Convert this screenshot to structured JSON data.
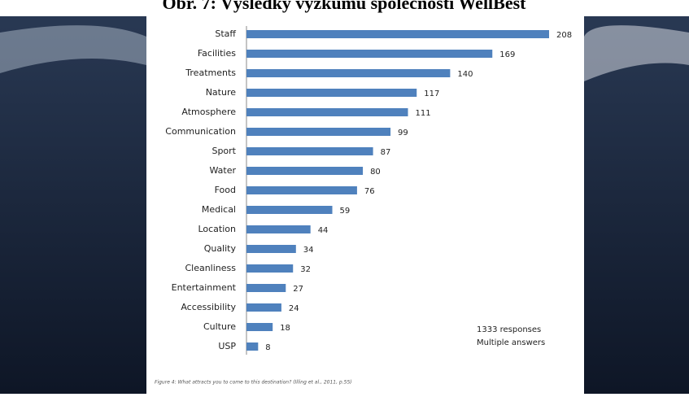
{
  "chart_data": {
    "type": "bar",
    "orientation": "horizontal",
    "title": "Obr. 7: Výsledky výzkumu společnosti WellBest",
    "categories": [
      "Staff",
      "Facilities",
      "Treatments",
      "Nature",
      "Atmosphere",
      "Communication",
      "Sport",
      "Water",
      "Food",
      "Medical",
      "Location",
      "Quality",
      "Cleanliness",
      "Entertainment",
      "Accessibility",
      "Culture",
      "USP"
    ],
    "values": [
      208,
      169,
      140,
      117,
      111,
      99,
      87,
      80,
      76,
      59,
      44,
      34,
      32,
      27,
      24,
      18,
      8
    ],
    "color": "#4f81bd",
    "annotations": [
      "1333 responses",
      "Multiple answers"
    ],
    "caption": "Figure 4: What attracts you to come to this destination? (Illing et al., 2011, p.55)"
  }
}
